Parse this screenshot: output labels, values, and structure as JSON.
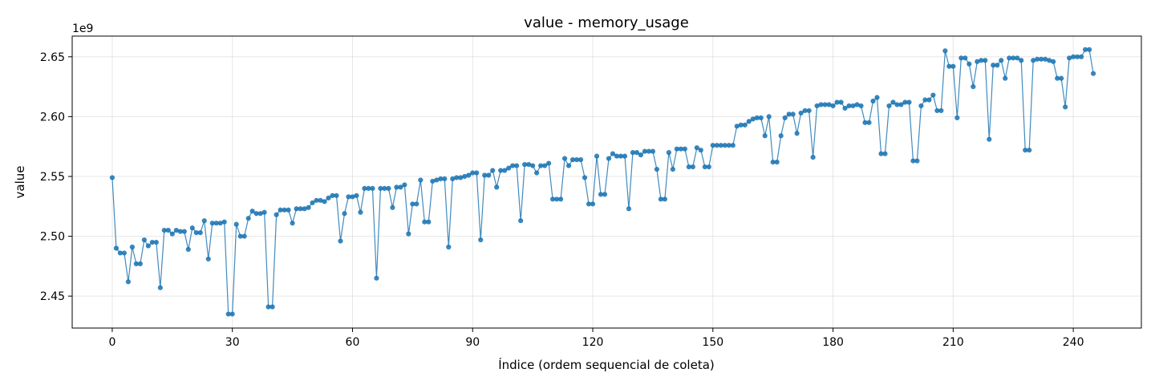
{
  "colors": {
    "series": "#1f77b4"
  },
  "chart_data": {
    "type": "line",
    "title": "value - memory_usage",
    "xlabel": "Índice (ordem sequencial de coleta)",
    "ylabel": "value",
    "y_offset_label": "1e9",
    "xlim": [
      -10,
      257
    ],
    "ylim": [
      2.4233,
      2.6673
    ],
    "x_ticks": [
      0,
      30,
      60,
      90,
      120,
      150,
      180,
      210,
      240
    ],
    "y_ticks": [
      2.45,
      2.5,
      2.55,
      2.6,
      2.65
    ],
    "x_tick_labels": [
      "0",
      "30",
      "60",
      "90",
      "120",
      "150",
      "180",
      "210",
      "240"
    ],
    "y_tick_labels": [
      "2.45",
      "2.50",
      "2.55",
      "2.60",
      "2.65"
    ],
    "grid": true,
    "markers": true,
    "series": [
      {
        "x_start": 0,
        "values": [
          2.549,
          2.49,
          2.486,
          2.486,
          2.462,
          2.491,
          2.477,
          2.477,
          2.497,
          2.492,
          2.495,
          2.495,
          2.457,
          2.505,
          2.505,
          2.502,
          2.505,
          2.504,
          2.504,
          2.489,
          2.507,
          2.503,
          2.503,
          2.513,
          2.481,
          2.511,
          2.511,
          2.511,
          2.512,
          2.435,
          2.435,
          2.51,
          2.5,
          2.5,
          2.515,
          2.521,
          2.519,
          2.519,
          2.52,
          2.441,
          2.441,
          2.518,
          2.522,
          2.522,
          2.522,
          2.511,
          2.523,
          2.523,
          2.523,
          2.524,
          2.528,
          2.53,
          2.53,
          2.529,
          2.532,
          2.534,
          2.534,
          2.496,
          2.519,
          2.533,
          2.533,
          2.534,
          2.52,
          2.54,
          2.54,
          2.54,
          2.465,
          2.54,
          2.54,
          2.54,
          2.524,
          2.541,
          2.541,
          2.543,
          2.502,
          2.527,
          2.527,
          2.547,
          2.512,
          2.512,
          2.546,
          2.547,
          2.548,
          2.548,
          2.491,
          2.548,
          2.549,
          2.549,
          2.55,
          2.551,
          2.553,
          2.553,
          2.497,
          2.551,
          2.551,
          2.555,
          2.541,
          2.555,
          2.555,
          2.557,
          2.559,
          2.559,
          2.513,
          2.56,
          2.56,
          2.559,
          2.553,
          2.559,
          2.559,
          2.561,
          2.531,
          2.531,
          2.531,
          2.565,
          2.559,
          2.564,
          2.564,
          2.564,
          2.549,
          2.527,
          2.527,
          2.567,
          2.535,
          2.535,
          2.565,
          2.569,
          2.567,
          2.567,
          2.567,
          2.523,
          2.57,
          2.57,
          2.568,
          2.571,
          2.571,
          2.571,
          2.556,
          2.531,
          2.531,
          2.57,
          2.556,
          2.573,
          2.573,
          2.573,
          2.558,
          2.558,
          2.574,
          2.572,
          2.558,
          2.558,
          2.576,
          2.576,
          2.576,
          2.576,
          2.576,
          2.576,
          2.592,
          2.593,
          2.593,
          2.596,
          2.598,
          2.599,
          2.599,
          2.584,
          2.6,
          2.562,
          2.562,
          2.584,
          2.599,
          2.602,
          2.602,
          2.586,
          2.603,
          2.605,
          2.605,
          2.566,
          2.609,
          2.61,
          2.61,
          2.61,
          2.609,
          2.612,
          2.612,
          2.607,
          2.609,
          2.609,
          2.61,
          2.609,
          2.595,
          2.595,
          2.613,
          2.616,
          2.569,
          2.569,
          2.609,
          2.612,
          2.61,
          2.61,
          2.612,
          2.612,
          2.563,
          2.563,
          2.609,
          2.614,
          2.614,
          2.618,
          2.605,
          2.605,
          2.655,
          2.642,
          2.642,
          2.599,
          2.649,
          2.649,
          2.644,
          2.625,
          2.646,
          2.647,
          2.647,
          2.581,
          2.643,
          2.643,
          2.647,
          2.632,
          2.649,
          2.649,
          2.649,
          2.647,
          2.572,
          2.572,
          2.647,
          2.648,
          2.648,
          2.648,
          2.647,
          2.646,
          2.632,
          2.632,
          2.608,
          2.649,
          2.65,
          2.65,
          2.65,
          2.656,
          2.656,
          2.636
        ]
      }
    ]
  }
}
